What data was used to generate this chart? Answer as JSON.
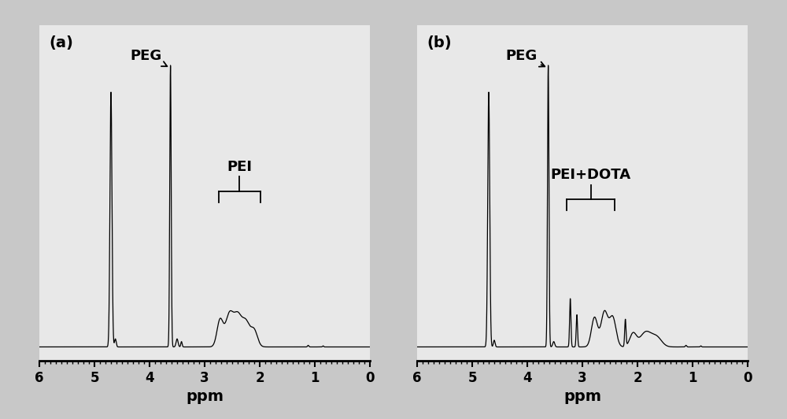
{
  "background_color": "#c8c8c8",
  "panel_bg": "#e8e8e8",
  "title_a": "(a)",
  "title_b": "(b)",
  "xlabel": "ppm",
  "label_peg_a": "PEG",
  "label_pei_a": "PEI",
  "label_peg_b": "PEG",
  "label_pei_dota_b": "PEI+DOTA",
  "tick_fontsize": 12,
  "label_fontsize": 14,
  "annot_fontsize": 13
}
